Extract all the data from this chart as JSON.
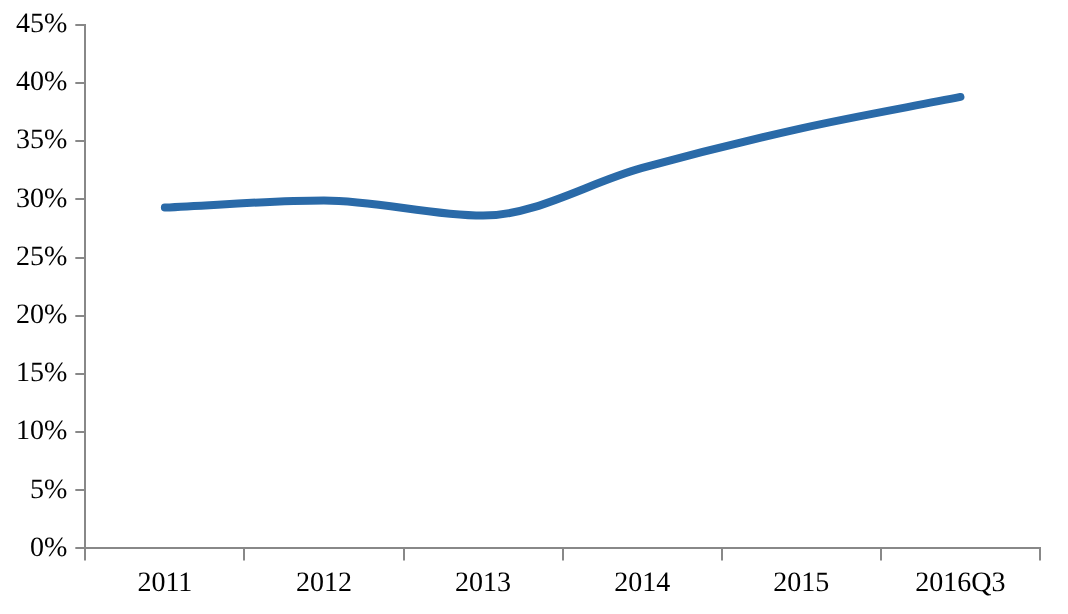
{
  "chart_data": {
    "type": "line",
    "categories": [
      "2011",
      "2012",
      "2013",
      "2014",
      "2015",
      "2016Q3"
    ],
    "series": [
      {
        "color": "#2a6aa8",
        "values": [
          29.3,
          29.9,
          28.6,
          32.7,
          36.1,
          38.8
        ]
      }
    ],
    "ylim": [
      0,
      45
    ],
    "yticks": [
      {
        "value": 0,
        "label": "0%"
      },
      {
        "value": 5,
        "label": "5%"
      },
      {
        "value": 10,
        "label": "10%"
      },
      {
        "value": 15,
        "label": "15%"
      },
      {
        "value": 20,
        "label": "20%"
      },
      {
        "value": 25,
        "label": "25%"
      },
      {
        "value": 30,
        "label": "30%"
      },
      {
        "value": 35,
        "label": "35%"
      },
      {
        "value": 40,
        "label": "40%"
      },
      {
        "value": 45,
        "label": "45%"
      }
    ],
    "grid": false,
    "legend": false,
    "marker": "none",
    "line_style": "solid"
  }
}
